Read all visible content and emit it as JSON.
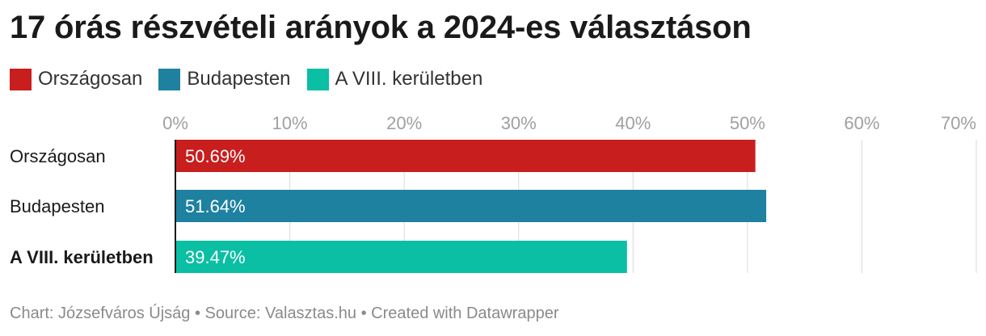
{
  "chart_data": {
    "type": "bar",
    "orientation": "horizontal",
    "title": "17 órás részvételi arányok a 2024-es választáson",
    "categories": [
      "Országosan",
      "Budapesten",
      "A VIII. kerületben"
    ],
    "values": [
      50.69,
      51.64,
      39.47
    ],
    "value_labels": [
      "50.69%",
      "51.64%",
      "39.47%"
    ],
    "colors": [
      "#c81e1e",
      "#1e81a0",
      "#0abfa3"
    ],
    "xlim": [
      0,
      70
    ],
    "ticks": [
      0,
      10,
      20,
      30,
      40,
      50,
      60,
      70
    ],
    "tick_labels": [
      "0%",
      "10%",
      "20%",
      "30%",
      "40%",
      "50%",
      "60%",
      "70%"
    ],
    "highlighted_category": "A VIII. kerületben",
    "grid": true,
    "legend": {
      "position": "top-left",
      "entries": [
        {
          "label": "Országosan",
          "color": "#c81e1e"
        },
        {
          "label": "Budapesten",
          "color": "#1e81a0"
        },
        {
          "label": "A VIII. kerületben",
          "color": "#0abfa3"
        }
      ]
    }
  },
  "footer": {
    "text": "Chart: Józsefváros Újság • Source: Valasztas.hu • Created with Datawrapper"
  }
}
